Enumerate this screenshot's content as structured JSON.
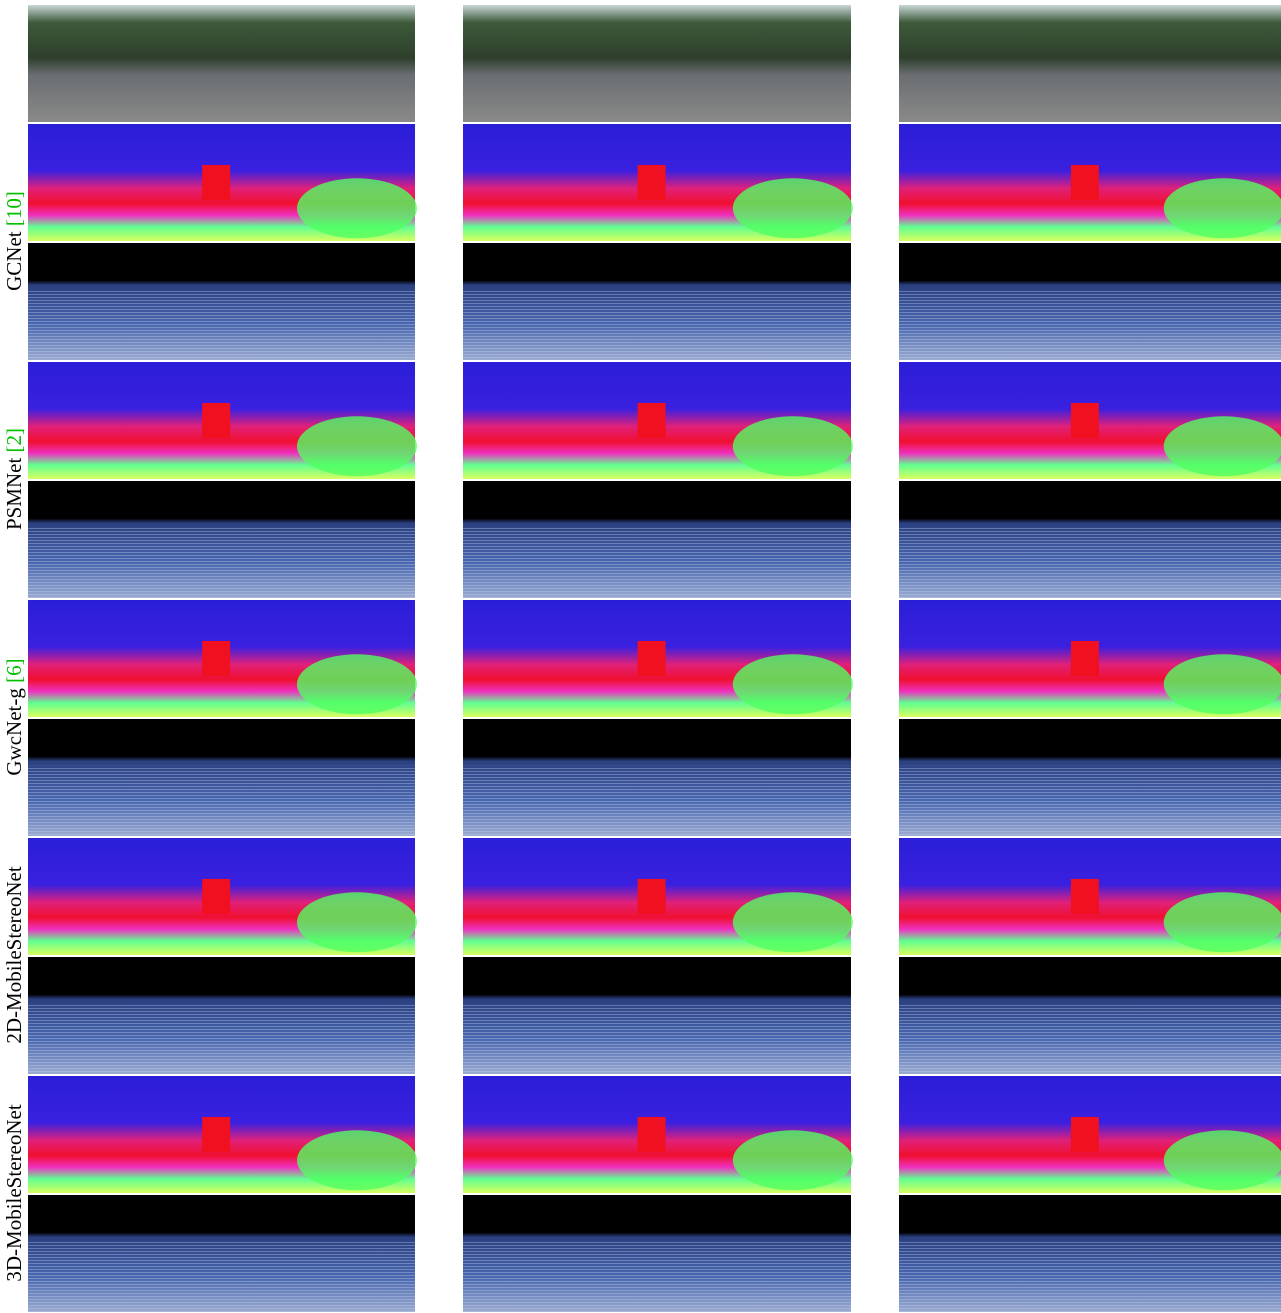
{
  "methods": [
    {
      "name": "GCNet",
      "cite": "[10]"
    },
    {
      "name": "PSMNet",
      "cite": "[2]"
    },
    {
      "name": "GwcNet-g",
      "cite": "[6]"
    },
    {
      "name": "2D-MobileStereoNet"
    },
    {
      "name": "3D-MobileStereoNet"
    }
  ]
}
